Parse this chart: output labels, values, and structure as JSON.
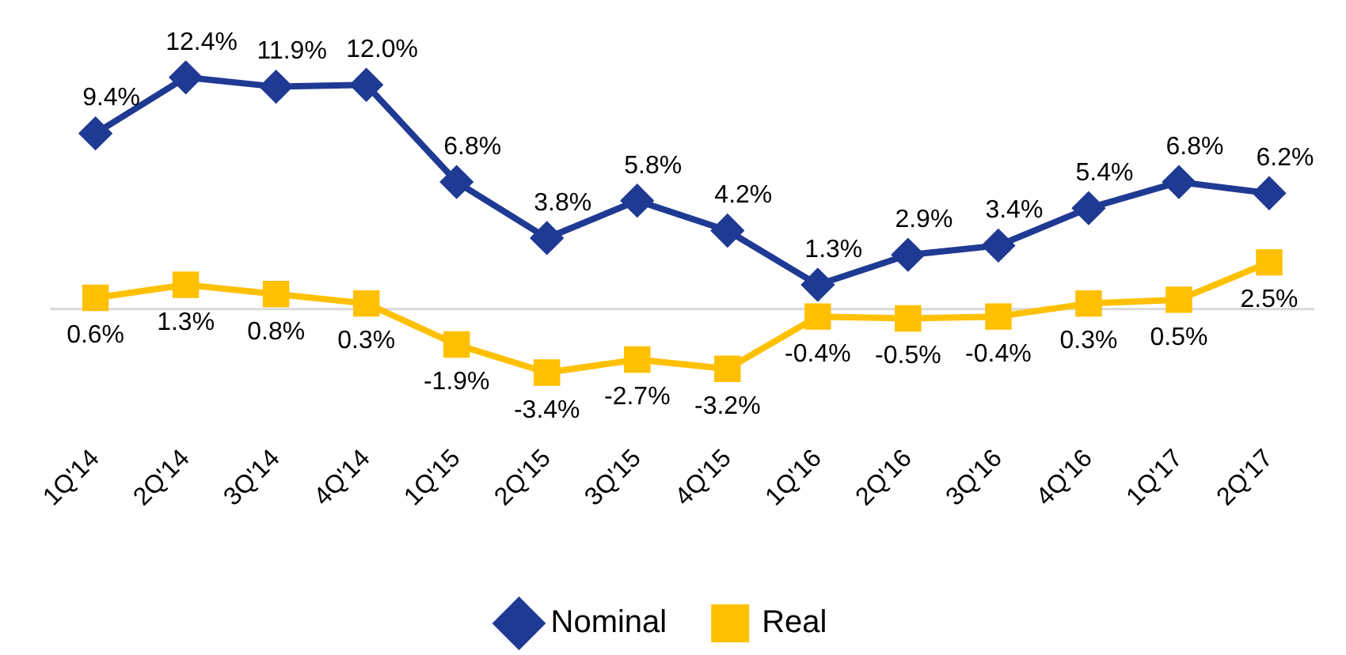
{
  "chart_data": {
    "type": "line",
    "categories": [
      "1Q'14",
      "2Q'14",
      "3Q'14",
      "4Q'14",
      "1Q'15",
      "2Q'15",
      "3Q'15",
      "4Q'15",
      "1Q'16",
      "2Q'16",
      "3Q'16",
      "4Q'16",
      "1Q'17",
      "2Q'17"
    ],
    "series": [
      {
        "name": "Nominal",
        "color": "#1f3a93",
        "marker": "diamond",
        "values": [
          9.4,
          12.4,
          11.9,
          12.0,
          6.8,
          3.8,
          5.8,
          4.2,
          1.3,
          2.9,
          3.4,
          5.4,
          6.8,
          6.2
        ],
        "value_labels": [
          "9.4%",
          "12.4%",
          "11.9%",
          "12.0%",
          "6.8%",
          "3.8%",
          "5.8%",
          "4.2%",
          "1.3%",
          "2.9%",
          "3.4%",
          "5.4%",
          "6.8%",
          "6.2%"
        ]
      },
      {
        "name": "Real",
        "color": "#ffc000",
        "marker": "square",
        "values": [
          0.6,
          1.3,
          0.8,
          0.3,
          -1.9,
          -3.4,
          -2.7,
          -3.2,
          -0.4,
          -0.5,
          -0.4,
          0.3,
          0.5,
          2.5
        ],
        "value_labels": [
          "0.6%",
          "1.3%",
          "0.8%",
          "0.3%",
          "-1.9%",
          "-3.4%",
          "-2.7%",
          "-3.2%",
          "-0.4%",
          "-0.5%",
          "-0.4%",
          "0.3%",
          "0.5%",
          "2.5%"
        ]
      }
    ],
    "ref_lines": [
      {
        "axis": "y",
        "value": 0,
        "color": "#d9d9d9"
      }
    ],
    "grid": false,
    "legend": "bottom",
    "tick_labels": "x",
    "line_style": "solid"
  }
}
